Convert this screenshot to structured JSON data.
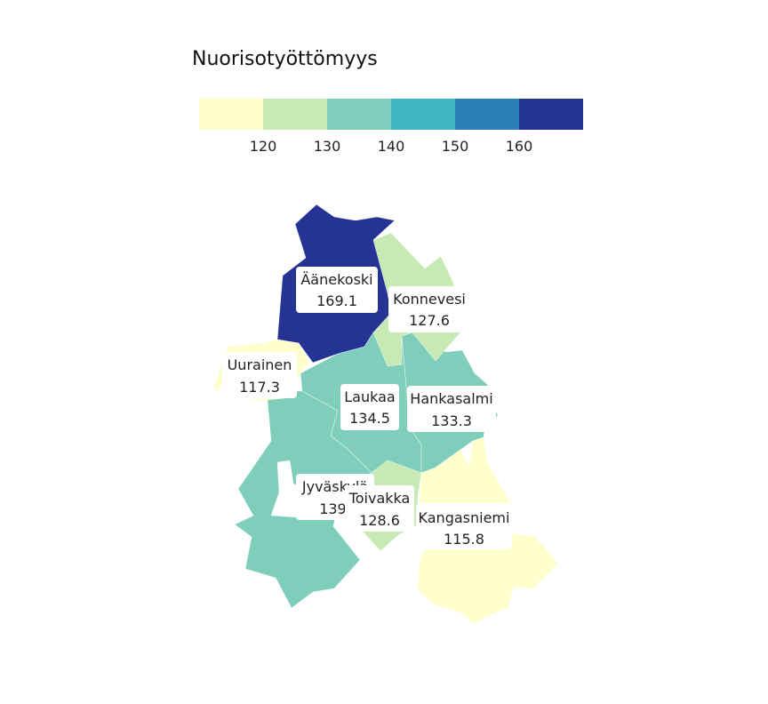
{
  "title": "Nuorisotyöttömyys",
  "legend": {
    "colors": [
      "#ffffcc",
      "#c7e9b4",
      "#7fcdbb",
      "#41b6c4",
      "#2c7fb8",
      "#253494"
    ],
    "ticks": [
      "120",
      "130",
      "140",
      "150",
      "160"
    ]
  },
  "municipalities": [
    {
      "name": "Äänekoski",
      "value": "169.1",
      "color": "#253494"
    },
    {
      "name": "Konnevesi",
      "value": "127.6",
      "color": "#c7e9b4"
    },
    {
      "name": "Uurainen",
      "value": "117.3",
      "color": "#ffffcc"
    },
    {
      "name": "Laukaa",
      "value": "134.5",
      "color": "#7fcdbb"
    },
    {
      "name": "Hankasalmi",
      "value": "133.3",
      "color": "#7fcdbb"
    },
    {
      "name": "Jyväskylä",
      "value": "139.",
      "color": "#7fcdbb"
    },
    {
      "name": "Toivakka",
      "value": "128.6",
      "color": "#c7e9b4"
    },
    {
      "name": "Kangasniemi",
      "value": "115.8",
      "color": "#ffffcc"
    }
  ]
}
